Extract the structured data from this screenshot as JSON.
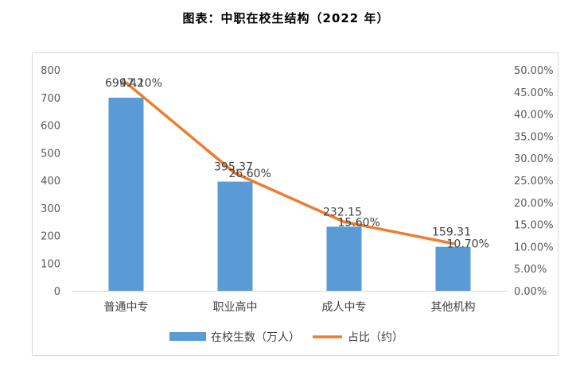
{
  "title": "图表：中职在校生结构（2022 年）",
  "chart_data": {
    "type": "bar",
    "title": "图表：中职在校生结构（2022 年）",
    "categories": [
      "普通中专",
      "职业高中",
      "成人中专",
      "其他机构"
    ],
    "series": [
      {
        "name": "在校生数（万人）",
        "type": "bar",
        "axis": "left",
        "color": "#5b9bd5",
        "values": [
          699.42,
          395.37,
          232.15,
          159.31
        ],
        "labels": [
          "699.42",
          "395.37",
          "232.15",
          "159.31"
        ]
      },
      {
        "name": "占比（约）",
        "type": "line",
        "axis": "right",
        "color": "#ed7d31",
        "values": [
          0.471,
          0.266,
          0.156,
          0.107
        ],
        "labels": [
          "47.10%",
          "26.60%",
          "15.60%",
          "10.70%"
        ]
      }
    ],
    "y_left": {
      "range": [
        0,
        800
      ],
      "ticks": [
        "0",
        "100",
        "200",
        "300",
        "400",
        "500",
        "600",
        "700",
        "800"
      ]
    },
    "y_right": {
      "range": [
        0,
        0.5
      ],
      "ticks": [
        "0.00%",
        "5.00%",
        "10.00%",
        "15.00%",
        "20.00%",
        "25.00%",
        "30.00%",
        "35.00%",
        "40.00%",
        "45.00%",
        "50.00%"
      ]
    },
    "grid": false,
    "legend_position": "bottom"
  }
}
